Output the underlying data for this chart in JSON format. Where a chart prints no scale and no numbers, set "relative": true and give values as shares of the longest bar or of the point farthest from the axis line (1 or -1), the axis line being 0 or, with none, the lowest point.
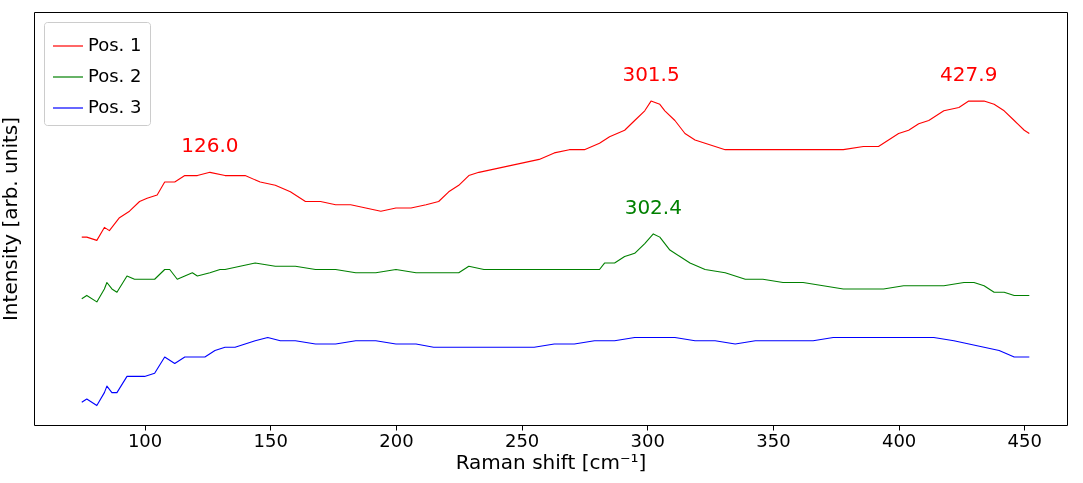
{
  "chart_data": {
    "type": "line",
    "xlabel": "Raman shift [cm⁻¹]",
    "ylabel": "Intensity [arb. units]",
    "relative": true,
    "xlim": [
      56,
      467
    ],
    "xticks": [
      100,
      150,
      200,
      250,
      300,
      350,
      400,
      450
    ],
    "grid": false,
    "legend": "top left",
    "line_style": "solid",
    "marker": "none",
    "series": [
      {
        "name": "Pos. 1",
        "color": "#ff0000",
        "x": [
          75,
          77,
          81,
          84,
          86,
          90,
          94,
          98,
          101,
          105,
          108,
          112,
          116,
          121,
          126,
          132,
          136,
          140,
          146,
          152,
          158,
          164,
          170,
          176,
          182,
          188,
          194,
          200,
          206,
          212,
          217,
          221,
          225,
          229,
          233,
          239,
          245,
          251,
          257,
          263,
          269,
          275,
          281,
          285,
          291,
          295,
          299,
          301.5,
          305,
          307,
          311,
          315,
          319,
          323,
          327,
          331,
          339,
          346,
          354,
          362,
          370,
          378,
          386,
          392,
          396,
          400,
          404,
          408,
          412,
          418,
          424,
          427.9,
          434,
          438,
          442,
          446,
          450,
          452
        ],
        "values": [
          0.58,
          0.58,
          0.57,
          0.61,
          0.6,
          0.64,
          0.66,
          0.69,
          0.7,
          0.71,
          0.75,
          0.75,
          0.77,
          0.77,
          0.78,
          0.77,
          0.77,
          0.77,
          0.75,
          0.74,
          0.72,
          0.69,
          0.69,
          0.68,
          0.68,
          0.67,
          0.66,
          0.67,
          0.67,
          0.68,
          0.69,
          0.72,
          0.74,
          0.77,
          0.78,
          0.79,
          0.8,
          0.81,
          0.82,
          0.84,
          0.85,
          0.85,
          0.87,
          0.89,
          0.91,
          0.94,
          0.97,
          1.0,
          0.99,
          0.97,
          0.94,
          0.9,
          0.88,
          0.87,
          0.86,
          0.85,
          0.85,
          0.85,
          0.85,
          0.85,
          0.85,
          0.85,
          0.86,
          0.86,
          0.88,
          0.9,
          0.91,
          0.93,
          0.94,
          0.97,
          0.98,
          1.0,
          1.0,
          0.99,
          0.97,
          0.94,
          0.91,
          0.9
        ]
      },
      {
        "name": "Pos. 2",
        "color": "#008000",
        "x": [
          75,
          77,
          81,
          84,
          85,
          87,
          89,
          93,
          96,
          100,
          104,
          108,
          110,
          113,
          116,
          119,
          121,
          126,
          130,
          132,
          138,
          144,
          152,
          160,
          168,
          176,
          184,
          192,
          200,
          208,
          215,
          221,
          225,
          229,
          235,
          243,
          251,
          259,
          267,
          275,
          281,
          283,
          287,
          291,
          295,
          299,
          302.4,
          305,
          309,
          313,
          317,
          323,
          331,
          339,
          346,
          354,
          362,
          370,
          378,
          386,
          394,
          402,
          410,
          418,
          426,
          430,
          434,
          438,
          442,
          446,
          452
        ],
        "values": [
          0.39,
          0.4,
          0.38,
          0.42,
          0.44,
          0.42,
          0.41,
          0.46,
          0.45,
          0.45,
          0.45,
          0.48,
          0.48,
          0.45,
          0.46,
          0.47,
          0.46,
          0.47,
          0.48,
          0.48,
          0.49,
          0.5,
          0.49,
          0.49,
          0.48,
          0.48,
          0.47,
          0.47,
          0.48,
          0.47,
          0.47,
          0.47,
          0.47,
          0.49,
          0.48,
          0.48,
          0.48,
          0.48,
          0.48,
          0.48,
          0.48,
          0.5,
          0.5,
          0.52,
          0.53,
          0.56,
          0.59,
          0.58,
          0.54,
          0.52,
          0.5,
          0.48,
          0.47,
          0.45,
          0.45,
          0.44,
          0.44,
          0.43,
          0.42,
          0.42,
          0.42,
          0.43,
          0.43,
          0.43,
          0.44,
          0.44,
          0.43,
          0.41,
          0.41,
          0.4,
          0.4
        ]
      },
      {
        "name": "Pos. 3",
        "color": "#0000ff",
        "x": [
          75,
          77,
          81,
          84,
          85,
          87,
          89,
          93,
          96,
          100,
          104,
          108,
          112,
          116,
          121,
          124,
          128,
          132,
          136,
          140,
          144,
          149,
          154,
          160,
          168,
          176,
          184,
          192,
          200,
          208,
          215,
          221,
          227,
          233,
          239,
          247,
          255,
          263,
          271,
          279,
          287,
          295,
          303,
          311,
          319,
          327,
          335,
          343,
          350,
          358,
          366,
          374,
          382,
          390,
          398,
          406,
          414,
          422,
          428,
          434,
          440,
          446,
          452
        ],
        "values": [
          0.07,
          0.08,
          0.06,
          0.1,
          0.12,
          0.1,
          0.1,
          0.15,
          0.15,
          0.15,
          0.16,
          0.21,
          0.19,
          0.21,
          0.21,
          0.21,
          0.23,
          0.24,
          0.24,
          0.25,
          0.26,
          0.27,
          0.26,
          0.26,
          0.25,
          0.25,
          0.26,
          0.26,
          0.25,
          0.25,
          0.24,
          0.24,
          0.24,
          0.24,
          0.24,
          0.24,
          0.24,
          0.25,
          0.25,
          0.26,
          0.26,
          0.27,
          0.27,
          0.27,
          0.26,
          0.26,
          0.25,
          0.26,
          0.26,
          0.26,
          0.26,
          0.27,
          0.27,
          0.27,
          0.27,
          0.27,
          0.27,
          0.26,
          0.25,
          0.24,
          0.23,
          0.21,
          0.21
        ]
      }
    ],
    "annotations": [
      {
        "text": "126.0",
        "x": 126,
        "y": 0.78
      },
      {
        "text": "301.5",
        "x": 301.5,
        "y": 1.0
      },
      {
        "text": "427.9",
        "x": 427.9,
        "y": 1.0
      },
      {
        "text": "302.4",
        "x": 302.4,
        "y": 0.59
      }
    ]
  }
}
